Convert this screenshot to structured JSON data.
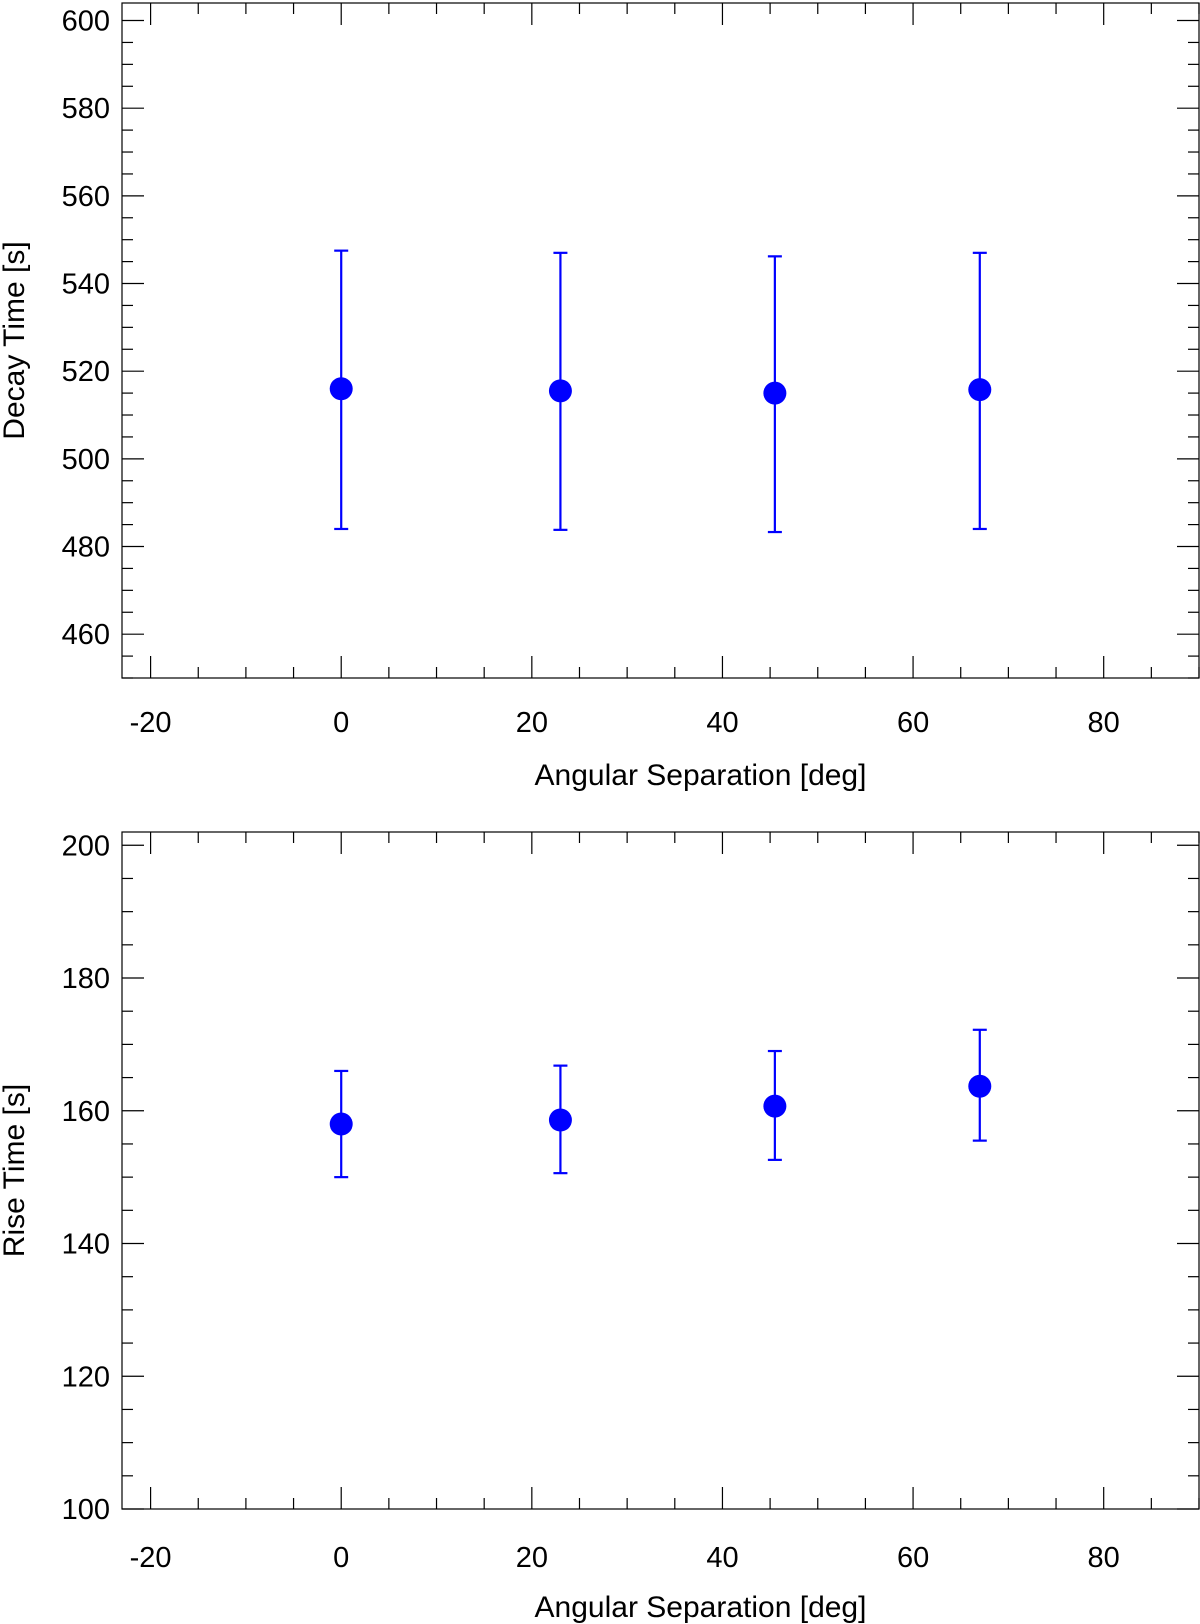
{
  "colors": {
    "marker": "#0000ff",
    "axis": "#000000"
  },
  "chart_data": [
    {
      "type": "scatter",
      "title": "",
      "xlabel": "Angular Separation [deg]",
      "ylabel": "Decay Time [s]",
      "xlim": [
        -23,
        90
      ],
      "ylim": [
        450,
        604
      ],
      "xticks": [
        -20,
        0,
        20,
        40,
        60,
        80
      ],
      "yticks": [
        460,
        480,
        500,
        520,
        540,
        560,
        580,
        600
      ],
      "xtick_labels": [
        "-20",
        "0",
        "20",
        "40",
        "60",
        "80"
      ],
      "ytick_labels": [
        "460",
        "480",
        "500",
        "520",
        "540",
        "560",
        "580",
        "600"
      ],
      "x_minor_step": 5,
      "y_minor_step": 5,
      "series": [
        {
          "name": "Decay Time",
          "x": [
            0,
            23,
            45.5,
            67
          ],
          "y": [
            516,
            515.5,
            515,
            515.8
          ],
          "yerr_low": [
            484,
            483.8,
            483.3,
            484
          ],
          "yerr_high": [
            547.5,
            547,
            546.2,
            547
          ]
        }
      ]
    },
    {
      "type": "scatter",
      "title": "",
      "xlabel": "Angular Separation [deg]",
      "ylabel": "Rise Time [s]",
      "xlim": [
        -23,
        90
      ],
      "ylim": [
        100,
        202
      ],
      "xticks": [
        -20,
        0,
        20,
        40,
        60,
        80
      ],
      "yticks": [
        100,
        120,
        140,
        160,
        180,
        200
      ],
      "xtick_labels": [
        "-20",
        "0",
        "20",
        "40",
        "60",
        "80"
      ],
      "ytick_labels": [
        "100",
        "120",
        "140",
        "160",
        "180",
        "200"
      ],
      "x_minor_step": 5,
      "y_minor_step": 5,
      "series": [
        {
          "name": "Rise Time",
          "x": [
            0,
            23,
            45.5,
            67
          ],
          "y": [
            158,
            158.6,
            160.7,
            163.7
          ],
          "yerr_low": [
            150,
            150.6,
            152.6,
            155.5
          ],
          "yerr_high": [
            166,
            166.8,
            169,
            172.2
          ]
        }
      ]
    }
  ]
}
